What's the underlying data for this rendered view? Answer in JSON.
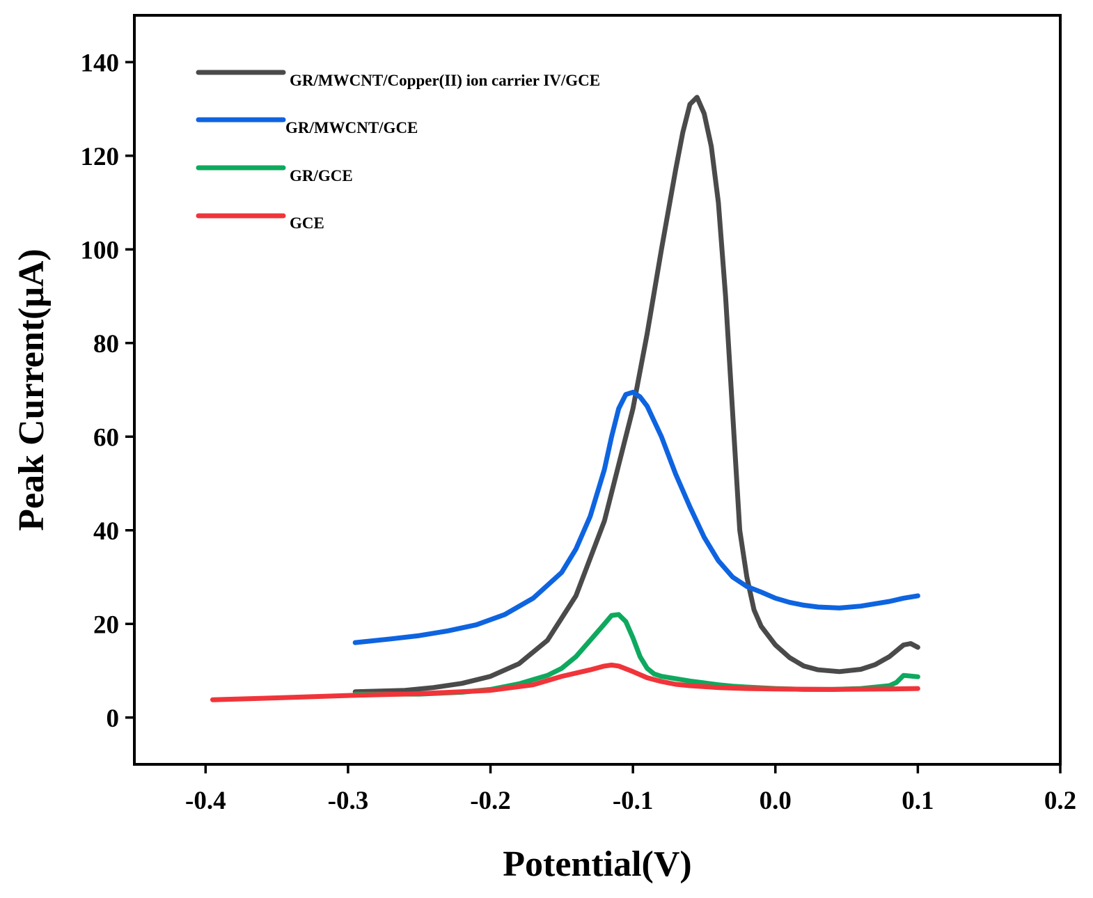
{
  "chart_data": {
    "type": "line",
    "title": "",
    "xlabel": "Potential(V)",
    "ylabel": "Peak Current(μA)",
    "xlim": [
      -0.45,
      0.2
    ],
    "ylim": [
      -10,
      150
    ],
    "x_ticks": [
      -0.4,
      -0.3,
      -0.2,
      -0.1,
      0.0,
      0.1,
      0.2
    ],
    "x_tick_labels": [
      "-0.4",
      "-0.3",
      "-0.2",
      "-0.1",
      "0.0",
      "0.1",
      "0.2"
    ],
    "y_ticks": [
      0,
      20,
      40,
      60,
      80,
      100,
      120,
      140
    ],
    "y_tick_labels": [
      "0",
      "20",
      "40",
      "60",
      "80",
      "100",
      "120",
      "140"
    ],
    "legend_position": "top-left",
    "series": [
      {
        "name": "GR/MWCNT/Copper(II) ion carrier IV/GCE",
        "color": "#4a4a4a",
        "points": [
          [
            -0.295,
            5.5
          ],
          [
            -0.26,
            5.8
          ],
          [
            -0.24,
            6.4
          ],
          [
            -0.22,
            7.3
          ],
          [
            -0.2,
            8.8
          ],
          [
            -0.18,
            11.5
          ],
          [
            -0.16,
            16.5
          ],
          [
            -0.14,
            26
          ],
          [
            -0.12,
            42
          ],
          [
            -0.1,
            66
          ],
          [
            -0.09,
            82
          ],
          [
            -0.08,
            100
          ],
          [
            -0.07,
            117
          ],
          [
            -0.065,
            125
          ],
          [
            -0.06,
            131
          ],
          [
            -0.055,
            132.5
          ],
          [
            -0.05,
            129
          ],
          [
            -0.045,
            122
          ],
          [
            -0.04,
            110
          ],
          [
            -0.035,
            90
          ],
          [
            -0.03,
            65
          ],
          [
            -0.025,
            40
          ],
          [
            -0.02,
            30
          ],
          [
            -0.015,
            23
          ],
          [
            -0.01,
            19.5
          ],
          [
            0.0,
            15.5
          ],
          [
            0.01,
            12.8
          ],
          [
            0.02,
            11
          ],
          [
            0.03,
            10.2
          ],
          [
            0.045,
            9.8
          ],
          [
            0.06,
            10.3
          ],
          [
            0.07,
            11.3
          ],
          [
            0.08,
            13
          ],
          [
            0.09,
            15.5
          ],
          [
            0.095,
            15.8
          ],
          [
            0.1,
            15
          ]
        ]
      },
      {
        "name": "GR/MWCNT/GCE",
        "color": "#0e64e0",
        "points": [
          [
            -0.295,
            16
          ],
          [
            -0.27,
            16.8
          ],
          [
            -0.25,
            17.5
          ],
          [
            -0.23,
            18.5
          ],
          [
            -0.21,
            19.8
          ],
          [
            -0.19,
            22
          ],
          [
            -0.17,
            25.5
          ],
          [
            -0.15,
            31
          ],
          [
            -0.14,
            36
          ],
          [
            -0.13,
            43
          ],
          [
            -0.12,
            53
          ],
          [
            -0.115,
            60
          ],
          [
            -0.11,
            66
          ],
          [
            -0.105,
            69
          ],
          [
            -0.1,
            69.5
          ],
          [
            -0.095,
            68.5
          ],
          [
            -0.09,
            66.5
          ],
          [
            -0.08,
            60
          ],
          [
            -0.07,
            52
          ],
          [
            -0.06,
            45
          ],
          [
            -0.05,
            38.5
          ],
          [
            -0.04,
            33.5
          ],
          [
            -0.03,
            30
          ],
          [
            -0.02,
            28
          ],
          [
            -0.01,
            26.8
          ],
          [
            0.0,
            25.5
          ],
          [
            0.01,
            24.6
          ],
          [
            0.02,
            24
          ],
          [
            0.03,
            23.6
          ],
          [
            0.045,
            23.4
          ],
          [
            0.06,
            23.8
          ],
          [
            0.07,
            24.3
          ],
          [
            0.08,
            24.8
          ],
          [
            0.09,
            25.5
          ],
          [
            0.1,
            26
          ]
        ]
      },
      {
        "name": "GR/GCE",
        "color": "#0ea95e",
        "points": [
          [
            -0.295,
            5
          ],
          [
            -0.25,
            5
          ],
          [
            -0.22,
            5.4
          ],
          [
            -0.2,
            6
          ],
          [
            -0.18,
            7.2
          ],
          [
            -0.16,
            9
          ],
          [
            -0.15,
            10.5
          ],
          [
            -0.14,
            13
          ],
          [
            -0.13,
            16.5
          ],
          [
            -0.12,
            20
          ],
          [
            -0.115,
            21.8
          ],
          [
            -0.11,
            22
          ],
          [
            -0.105,
            20.5
          ],
          [
            -0.1,
            17
          ],
          [
            -0.095,
            13
          ],
          [
            -0.09,
            10.5
          ],
          [
            -0.085,
            9.3
          ],
          [
            -0.08,
            8.8
          ],
          [
            -0.07,
            8.3
          ],
          [
            -0.06,
            7.8
          ],
          [
            -0.05,
            7.4
          ],
          [
            -0.04,
            7
          ],
          [
            -0.03,
            6.7
          ],
          [
            -0.02,
            6.5
          ],
          [
            0.0,
            6.2
          ],
          [
            0.02,
            6
          ],
          [
            0.04,
            6
          ],
          [
            0.06,
            6.2
          ],
          [
            0.08,
            6.8
          ],
          [
            0.085,
            7.5
          ],
          [
            0.09,
            9
          ],
          [
            0.1,
            8.7
          ]
        ]
      },
      {
        "name": "GCE",
        "color": "#f0353a",
        "points": [
          [
            -0.395,
            3.8
          ],
          [
            -0.35,
            4.2
          ],
          [
            -0.3,
            4.7
          ],
          [
            -0.25,
            5.1
          ],
          [
            -0.2,
            5.8
          ],
          [
            -0.17,
            7
          ],
          [
            -0.15,
            8.8
          ],
          [
            -0.13,
            10.2
          ],
          [
            -0.12,
            11
          ],
          [
            -0.115,
            11.2
          ],
          [
            -0.11,
            11
          ],
          [
            -0.1,
            9.8
          ],
          [
            -0.09,
            8.5
          ],
          [
            -0.08,
            7.7
          ],
          [
            -0.07,
            7.1
          ],
          [
            -0.06,
            6.8
          ],
          [
            -0.04,
            6.4
          ],
          [
            -0.02,
            6.2
          ],
          [
            0.0,
            6.1
          ],
          [
            0.04,
            6
          ],
          [
            0.08,
            6.1
          ],
          [
            0.1,
            6.2
          ]
        ]
      }
    ]
  }
}
